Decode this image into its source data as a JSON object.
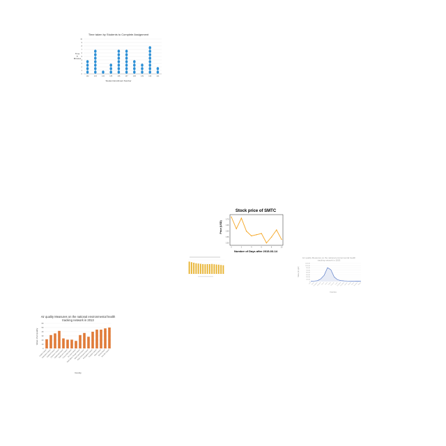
{
  "chart_data": [
    {
      "type": "scatter",
      "title": "Time taken by Students to Complete Assignment",
      "xlabel": "Student Enrollment Number",
      "ylabel": "Time in Minutes",
      "categories": [
        "132",
        "133",
        "134",
        "135",
        "136",
        "137",
        "138",
        "139",
        "140",
        "141"
      ],
      "values": [
        4,
        7,
        1,
        3,
        7,
        7,
        4,
        3,
        8,
        2
      ],
      "ylim": [
        0,
        10
      ],
      "yticks": [
        "0",
        "1",
        "2",
        "3",
        "4",
        "5",
        "6",
        "7",
        "8",
        "9",
        "10"
      ],
      "grid": true,
      "color": "#2b8fd6"
    },
    {
      "type": "line",
      "title": "Stock price of SMTC",
      "xlabel": "Number of Days after 2015-03-14",
      "ylabel": "Price (USD)",
      "x": [
        0,
        1,
        2,
        3,
        4,
        5,
        6,
        7,
        8,
        9,
        10
      ],
      "values": [
        3.72,
        3.62,
        3.71,
        3.6,
        3.56,
        3.57,
        3.58,
        3.5,
        3.55,
        3.61,
        3.53
      ],
      "xticks": [
        "0",
        "2",
        "4",
        "6",
        "8",
        "10"
      ],
      "yticks": [
        "3.50",
        "3.55",
        "3.60",
        "3.65",
        "3.70"
      ],
      "ylim": [
        3.48,
        3.74
      ],
      "grid": false,
      "color": "#f5a623"
    },
    {
      "type": "bar",
      "title": "",
      "xlabel": "",
      "ylabel": "",
      "values": [
        88,
        84,
        80,
        76,
        74,
        72,
        70,
        69,
        70,
        70,
        71,
        69,
        67,
        66,
        64,
        62
      ],
      "ylim": [
        0,
        100
      ],
      "grid": true,
      "color": "#e8b536"
    },
    {
      "type": "line",
      "title": "Air quality Measures on the national environmental health tracking network in 2003",
      "xlabel": "Counties",
      "ylabel": "Value (in ppb)",
      "categories": [
        "Bibb",
        "Blount",
        "Chambers",
        "Cherokee",
        "Chilton",
        "Clarke",
        "Colbert",
        "Conecuh",
        "Coosa",
        "Covington",
        "Crenshaw",
        "Cullman",
        "DeKalb",
        "Elmore",
        "Escambia",
        "Etowah"
      ],
      "values": [
        30000,
        35000,
        55000,
        180000,
        420000,
        920000,
        780000,
        300000,
        120000,
        60000,
        45000,
        35000,
        30000,
        28000,
        32000,
        25000
      ],
      "yticks": [
        "0",
        "150,000",
        "300,000",
        "450,000",
        "600,000",
        "750,000",
        "900,000",
        "1,050,000",
        "1,200,000"
      ],
      "ylim": [
        0,
        1200000
      ],
      "grid": true,
      "color": "#4a6fc3"
    },
    {
      "type": "bar",
      "title": "Air quality Measures on the national environmental health tracking network in 2013",
      "xlabel": "County",
      "ylabel": "Value of air quality",
      "categories": [
        "Caddo Parish",
        "Calcasieu Parish",
        "Caldwell Parish",
        "Cameron Parish",
        "Catahoula Parish",
        "Claiborne Parish",
        "Concordia Parish",
        "De Soto Parish",
        "East Baton Rouge Parish",
        "East Carroll Parish",
        "East Feliciana Parish",
        "Evangeline Parish",
        "Franklin Parish",
        "Grant Parish",
        "Iberia Parish",
        "Iberville Parish"
      ],
      "values": [
        22,
        32,
        36,
        42,
        24,
        21,
        21,
        18,
        32,
        37,
        28,
        40,
        45,
        45,
        48,
        50
      ],
      "yticks": [
        "0",
        "10",
        "20",
        "30",
        "40",
        "50",
        "60"
      ],
      "ylim": [
        0,
        60
      ],
      "grid": true,
      "color": "#e07b39"
    }
  ]
}
